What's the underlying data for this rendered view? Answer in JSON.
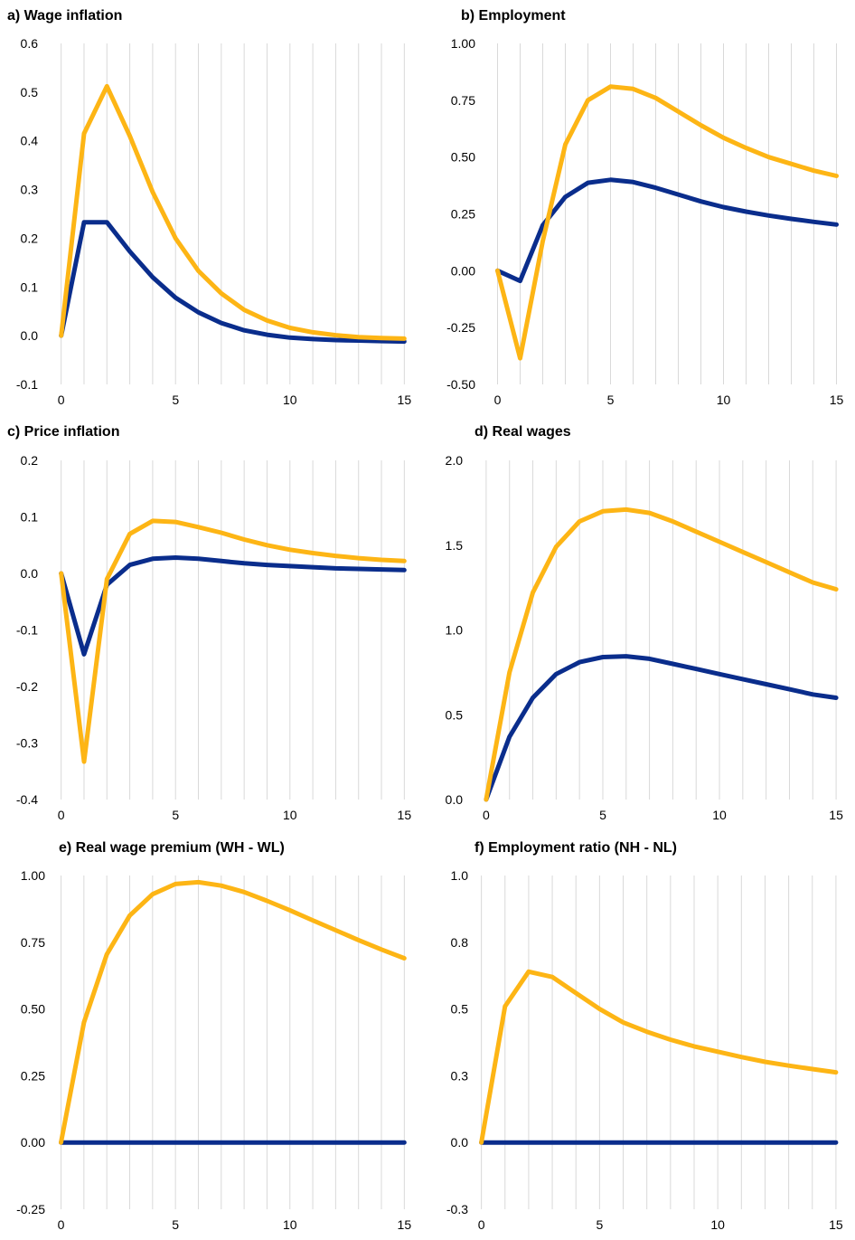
{
  "colors": {
    "series_a": "#0a2d8c",
    "series_b": "#fdb515",
    "grid": "#d9d9d9"
  },
  "chart_data": [
    {
      "type": "line",
      "title": "a) Wage inflation",
      "x": [
        0,
        1,
        2,
        3,
        4,
        5,
        6,
        7,
        8,
        9,
        10,
        11,
        12,
        13,
        14,
        15
      ],
      "xticks": [
        0,
        5,
        10,
        15
      ],
      "xlim": [
        -0.5,
        15.5
      ],
      "ylim": [
        -0.1,
        0.6
      ],
      "yticks": [
        -0.1,
        0.0,
        0.1,
        0.2,
        0.3,
        0.4,
        0.5,
        0.6
      ],
      "ytick_labels": [
        "-0.1",
        "0.0",
        "0.1",
        "0.2",
        "0.3",
        "0.4",
        "0.5",
        "0.6"
      ],
      "series": [
        {
          "color": "#0a2d8c",
          "values": [
            0.0,
            0.233,
            0.233,
            0.173,
            0.12,
            0.078,
            0.048,
            0.026,
            0.011,
            0.002,
            -0.004,
            -0.007,
            -0.009,
            -0.01,
            -0.011,
            -0.012
          ]
        },
        {
          "color": "#fdb515",
          "values": [
            0.0,
            0.415,
            0.512,
            0.41,
            0.295,
            0.2,
            0.133,
            0.087,
            0.053,
            0.031,
            0.016,
            0.007,
            0.001,
            -0.003,
            -0.005,
            -0.006
          ]
        }
      ]
    },
    {
      "type": "line",
      "title": "b) Employment",
      "x": [
        0,
        1,
        2,
        3,
        4,
        5,
        6,
        7,
        8,
        9,
        10,
        11,
        12,
        13,
        14,
        15
      ],
      "xticks": [
        0,
        5,
        10,
        15
      ],
      "xlim": [
        -0.5,
        15.5
      ],
      "ylim": [
        -0.5,
        1.0
      ],
      "yticks": [
        -0.5,
        -0.25,
        0.0,
        0.25,
        0.5,
        0.75,
        1.0
      ],
      "ytick_labels": [
        "-0.50",
        "-0.25",
        "0.00",
        "0.25",
        "0.50",
        "0.75",
        "1.00"
      ],
      "series": [
        {
          "color": "#0a2d8c",
          "values": [
            0.0,
            -0.045,
            0.2,
            0.325,
            0.387,
            0.4,
            0.39,
            0.365,
            0.335,
            0.305,
            0.28,
            0.26,
            0.243,
            0.228,
            0.215,
            0.203
          ]
        },
        {
          "color": "#fdb515",
          "values": [
            0.0,
            -0.385,
            0.13,
            0.555,
            0.75,
            0.81,
            0.8,
            0.76,
            0.7,
            0.64,
            0.585,
            0.54,
            0.5,
            0.47,
            0.44,
            0.417
          ]
        }
      ]
    },
    {
      "type": "line",
      "title": "c) Price inflation",
      "x": [
        0,
        1,
        2,
        3,
        4,
        5,
        6,
        7,
        8,
        9,
        10,
        11,
        12,
        13,
        14,
        15
      ],
      "xticks": [
        0,
        5,
        10,
        15
      ],
      "xlim": [
        -0.5,
        15.5
      ],
      "ylim": [
        -0.4,
        0.2
      ],
      "yticks": [
        -0.4,
        -0.3,
        -0.2,
        -0.1,
        0.0,
        0.1,
        0.2
      ],
      "ytick_labels": [
        "-0.4",
        "-0.3",
        "-0.2",
        "-0.1",
        "0.0",
        "0.1",
        "0.2"
      ],
      "series": [
        {
          "color": "#0a2d8c",
          "values": [
            0.0,
            -0.143,
            -0.02,
            0.015,
            0.026,
            0.028,
            0.026,
            0.022,
            0.018,
            0.015,
            0.013,
            0.011,
            0.009,
            0.008,
            0.007,
            0.006
          ]
        },
        {
          "color": "#fdb515",
          "values": [
            0.0,
            -0.333,
            -0.01,
            0.07,
            0.093,
            0.091,
            0.082,
            0.072,
            0.06,
            0.05,
            0.042,
            0.036,
            0.031,
            0.027,
            0.024,
            0.022
          ]
        }
      ]
    },
    {
      "type": "line",
      "title": "d) Real wages",
      "x": [
        0,
        1,
        2,
        3,
        4,
        5,
        6,
        7,
        8,
        9,
        10,
        11,
        12,
        13,
        14,
        15
      ],
      "xticks": [
        0,
        5,
        10,
        15
      ],
      "xlim": [
        -0.5,
        15.5
      ],
      "ylim": [
        0.0,
        2.0
      ],
      "yticks": [
        0.0,
        0.5,
        1.0,
        1.5,
        2.0
      ],
      "ytick_labels": [
        "0.0",
        "0.5",
        "1.0",
        "1.5",
        "2.0"
      ],
      "series": [
        {
          "color": "#0a2d8c",
          "values": [
            0.0,
            0.37,
            0.6,
            0.74,
            0.81,
            0.84,
            0.845,
            0.83,
            0.8,
            0.77,
            0.74,
            0.71,
            0.68,
            0.65,
            0.62,
            0.6
          ]
        },
        {
          "color": "#fdb515",
          "values": [
            0.0,
            0.75,
            1.22,
            1.49,
            1.64,
            1.7,
            1.71,
            1.69,
            1.64,
            1.58,
            1.52,
            1.46,
            1.4,
            1.34,
            1.28,
            1.24
          ]
        }
      ]
    },
    {
      "type": "line",
      "title": "e) Real wage premium (WH - WL)",
      "x": [
        0,
        1,
        2,
        3,
        4,
        5,
        6,
        7,
        8,
        9,
        10,
        11,
        12,
        13,
        14,
        15
      ],
      "xticks": [
        0,
        5,
        10,
        15
      ],
      "xlim": [
        -0.1,
        15.5
      ],
      "ylim": [
        -0.25,
        1.0
      ],
      "yticks": [
        -0.25,
        0.0,
        0.25,
        0.5,
        0.75,
        1.0
      ],
      "ytick_labels": [
        "-0.25",
        "0.00",
        "0.25",
        "0.50",
        "0.75",
        "1.00"
      ],
      "series": [
        {
          "color": "#0a2d8c",
          "values": [
            0,
            0,
            0,
            0,
            0,
            0,
            0,
            0,
            0,
            0,
            0,
            0,
            0,
            0,
            0,
            0
          ]
        },
        {
          "color": "#fdb515",
          "values": [
            0.0,
            0.45,
            0.705,
            0.85,
            0.93,
            0.968,
            0.975,
            0.962,
            0.938,
            0.905,
            0.87,
            0.832,
            0.795,
            0.758,
            0.723,
            0.69
          ]
        }
      ]
    },
    {
      "type": "line",
      "title": "f) Employment ratio (NH - NL)",
      "x": [
        0,
        1,
        2,
        3,
        4,
        5,
        6,
        7,
        8,
        9,
        10,
        11,
        12,
        13,
        14,
        15
      ],
      "xticks": [
        0,
        5,
        10,
        15
      ],
      "xlim": [
        -0.1,
        15.5
      ],
      "ylim": [
        -0.25,
        1.0
      ],
      "yticks": [
        -0.25,
        0.0,
        0.25,
        0.5,
        0.75,
        1.0
      ],
      "ytick_labels": [
        "-0.3",
        "0.0",
        "0.3",
        "0.5",
        "0.8",
        "1.0"
      ],
      "series": [
        {
          "color": "#0a2d8c",
          "values": [
            0,
            0,
            0,
            0,
            0,
            0,
            0,
            0,
            0,
            0,
            0,
            0,
            0,
            0,
            0,
            0
          ]
        },
        {
          "color": "#fdb515",
          "values": [
            0.0,
            0.51,
            0.64,
            0.62,
            0.56,
            0.5,
            0.45,
            0.415,
            0.385,
            0.36,
            0.34,
            0.32,
            0.302,
            0.288,
            0.275,
            0.263
          ]
        }
      ]
    }
  ]
}
